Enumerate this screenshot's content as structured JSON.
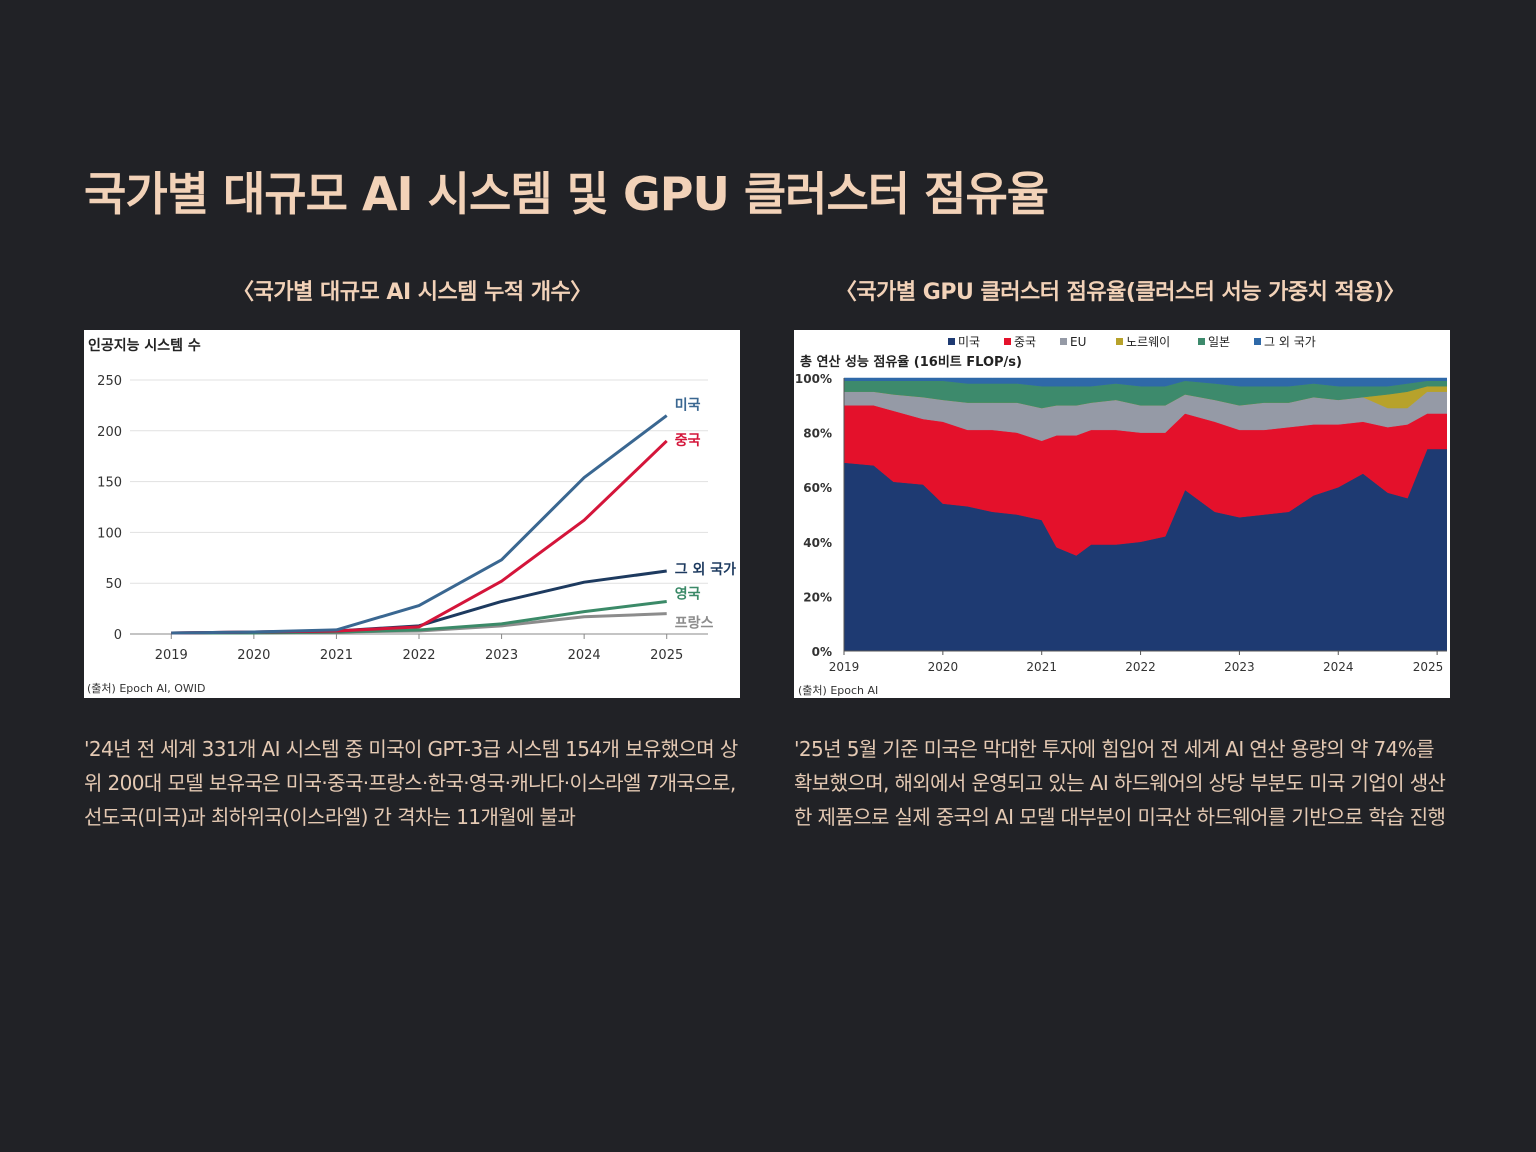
{
  "slide": {
    "title": "국가별 대규모 AI 시스템 및 GPU 클러스터 점유율"
  },
  "colors": {
    "background": "#212226",
    "title": "#f2d2b8",
    "body_text": "#e4c9b3"
  },
  "left_panel": {
    "caption": "〈국가별 대규모 AI 시스템 누적 개수〉",
    "description": "'24년 전 세계 331개 AI 시스템 중 미국이 GPT-3급 시스템 154개 보유했으며 상위 200대 모델 보유국은 미국·중국·프랑스·한국·영국·캐나다·이스라엘 7개국으로, 선도국(미국)과 최하위국(이스라엘) 간 격차는 11개월에 불과"
  },
  "right_panel": {
    "caption": "〈국가별 GPU 클러스터 점유율(클러스터 서능 가중치 적용)〉",
    "description": "'25년 5월 기준 미국은 막대한 투자에 힘입어 전 세계 AI 연산 용량의 약 74%를 확보했으며, 해외에서 운영되고 있는 AI 하드웨어의 상당 부분도 미국 기업이 생산한 제품으로 실제 중국의 AI 모델 대부분이 미국산 하드웨어를 기반으로 학습 진행"
  },
  "chart_data": [
    {
      "type": "line",
      "ylabel": "인공지능 시스템 수",
      "xlabel": "",
      "source": "(출처) Epoch AI, OWID",
      "x": [
        2019,
        2020,
        2021,
        2022,
        2023,
        2024,
        2025
      ],
      "ylim": [
        0,
        250
      ],
      "yticks": [
        0,
        50,
        100,
        150,
        200,
        250
      ],
      "xlim": [
        2018.5,
        2025.5
      ],
      "grid": true,
      "legend": "inline-right",
      "series": [
        {
          "name": "미국",
          "color": "#3a6791",
          "values": [
            1,
            2,
            4,
            28,
            73,
            154,
            215
          ]
        },
        {
          "name": "중국",
          "color": "#d4153a",
          "values": [
            1,
            2,
            3,
            7,
            52,
            112,
            190
          ]
        },
        {
          "name": "그 외 국가",
          "color": "#1d3a5f",
          "values": [
            1,
            2,
            3,
            8,
            32,
            51,
            62
          ]
        },
        {
          "name": "영국",
          "color": "#3b8a68",
          "values": [
            1,
            1,
            2,
            4,
            10,
            22,
            32
          ]
        },
        {
          "name": "프랑스",
          "color": "#8c8c8c",
          "values": [
            1,
            1,
            2,
            3,
            8,
            17,
            20
          ]
        }
      ]
    },
    {
      "type": "area",
      "stacked": true,
      "ylabel": "총 연산 성능 점유율 (16비트 FLOP/s)",
      "source": "(출처) Epoch AI",
      "x": [
        2019.0,
        2019.3,
        2019.5,
        2019.8,
        2020.0,
        2020.25,
        2020.5,
        2020.75,
        2021.0,
        2021.15,
        2021.35,
        2021.5,
        2021.75,
        2022.0,
        2022.25,
        2022.45,
        2022.75,
        2023.0,
        2023.25,
        2023.5,
        2023.75,
        2024.0,
        2024.25,
        2024.5,
        2024.7,
        2024.9,
        2025.1
      ],
      "xticks": [
        2019,
        2020,
        2021,
        2022,
        2023,
        2024,
        2025
      ],
      "ylim": [
        0,
        100
      ],
      "yticks": [
        "0%",
        "20%",
        "40%",
        "60%",
        "80%",
        "100%"
      ],
      "legend": "top",
      "series": [
        {
          "name": "미국",
          "color": "#1e3a72",
          "values": [
            69,
            68,
            62,
            61,
            54,
            53,
            51,
            50,
            48,
            38,
            35,
            39,
            39,
            40,
            42,
            59,
            51,
            49,
            50,
            51,
            57,
            60,
            65,
            58,
            56,
            74,
            74
          ]
        },
        {
          "name": "중국",
          "color": "#e4112b",
          "values": [
            21,
            22,
            26,
            24,
            30,
            28,
            30,
            30,
            29,
            41,
            44,
            42,
            42,
            40,
            38,
            28,
            33,
            32,
            31,
            31,
            26,
            23,
            19,
            24,
            27,
            13,
            13
          ]
        },
        {
          "name": "EU",
          "color": "#959aa6",
          "values": [
            5,
            5,
            6,
            8,
            8,
            10,
            10,
            11,
            12,
            11,
            11,
            10,
            11,
            10,
            10,
            7,
            8,
            9,
            10,
            9,
            10,
            9,
            9,
            7,
            6,
            8,
            8
          ]
        },
        {
          "name": "노르웨이",
          "color": "#b7a22b",
          "values": [
            0,
            0,
            0,
            0,
            0,
            0,
            0,
            0,
            0,
            0,
            0,
            0,
            0,
            0,
            0,
            0,
            0,
            0,
            0,
            0,
            0,
            0,
            0,
            5,
            6,
            2,
            2
          ]
        },
        {
          "name": "일본",
          "color": "#3d8a6c",
          "values": [
            4,
            4,
            5,
            6,
            7,
            7,
            7,
            7,
            8,
            7,
            7,
            6,
            6,
            7,
            7,
            5,
            6,
            7,
            6,
            6,
            5,
            5,
            4,
            3,
            3,
            2,
            2
          ]
        },
        {
          "name": "그 외 국가",
          "color": "#2f69a8",
          "values": [
            1,
            1,
            1,
            1,
            1,
            2,
            2,
            2,
            3,
            3,
            3,
            3,
            2,
            3,
            3,
            1,
            2,
            3,
            3,
            3,
            2,
            3,
            3,
            3,
            2,
            1,
            1
          ]
        }
      ]
    }
  ]
}
